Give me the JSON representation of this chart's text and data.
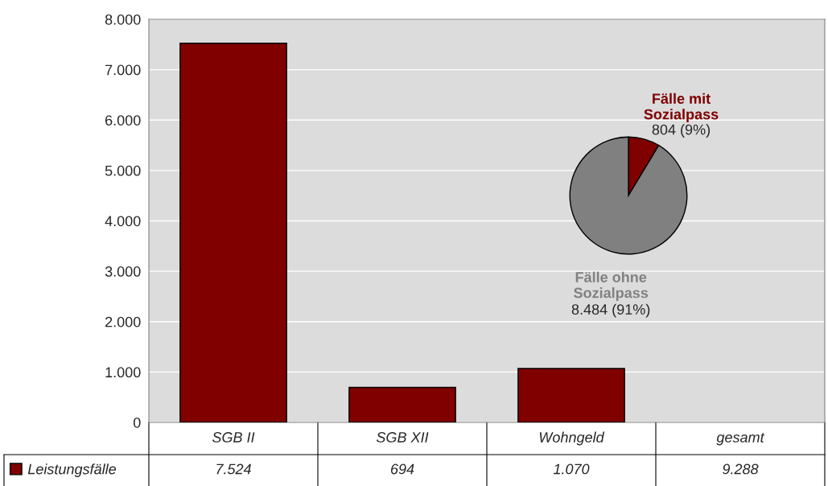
{
  "chart_data": [
    {
      "type": "bar",
      "categories": [
        "SGB II",
        "SGB XII",
        "Wohngeld",
        "gesamt"
      ],
      "series": [
        {
          "name": "Leistungsfälle",
          "color": "#800000",
          "values": [
            7524,
            694,
            1070,
            null
          ],
          "value_labels": [
            "7.524",
            "694",
            "1.070",
            "9.288"
          ]
        }
      ],
      "ylim": [
        0,
        8000
      ],
      "yticks": [
        {
          "value": 0,
          "label": "0"
        },
        {
          "value": 1000,
          "label": "1.000"
        },
        {
          "value": 2000,
          "label": "2.000"
        },
        {
          "value": 3000,
          "label": "3.000"
        },
        {
          "value": 4000,
          "label": "4.000"
        },
        {
          "value": 5000,
          "label": "5.000"
        },
        {
          "value": 6000,
          "label": "6.000"
        },
        {
          "value": 7000,
          "label": "7.000"
        },
        {
          "value": 8000,
          "label": "8.000"
        }
      ],
      "grid": "y",
      "legend": "bottom left"
    },
    {
      "type": "pie",
      "categories": [
        "Fälle mit\nSozialpass",
        "Fälle ohne\nSozialpass"
      ],
      "values": [
        804,
        8484
      ],
      "colors": [
        "#800000",
        "#808080"
      ],
      "value_labels": [
        "804 (9%)",
        "8.484 (91%)"
      ]
    }
  ]
}
